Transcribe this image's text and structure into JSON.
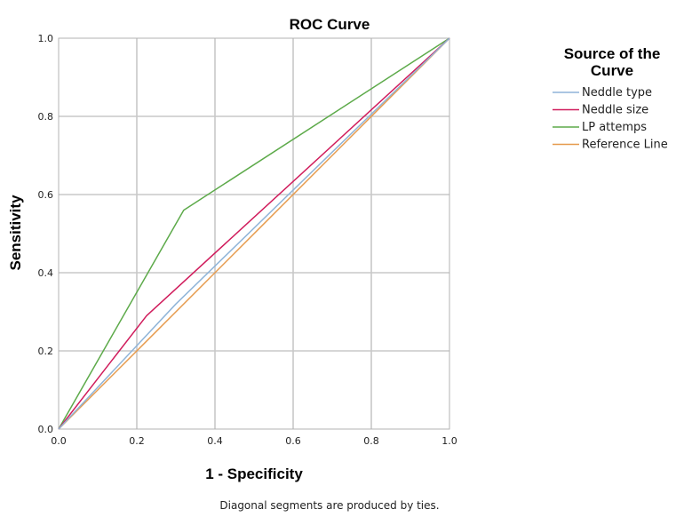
{
  "chart_data": {
    "type": "line",
    "title": "ROC Curve",
    "xlabel": "1 - Specificity",
    "ylabel": "Sensitivity",
    "xlim": [
      0,
      1
    ],
    "ylim": [
      0,
      1
    ],
    "x_ticks": [
      "0.0",
      "0.2",
      "0.4",
      "0.6",
      "0.8",
      "1.0"
    ],
    "y_ticks": [
      "0.0",
      "0.2",
      "0.4",
      "0.6",
      "0.8",
      "1.0"
    ],
    "grid": true,
    "legend": {
      "title_lines": [
        "Source of the",
        "Curve"
      ],
      "placement": "right"
    },
    "series": [
      {
        "name": "Neddle type",
        "color": "#8fb4d8",
        "points": [
          [
            0,
            0
          ],
          [
            0.3,
            0.32
          ],
          [
            1,
            1
          ]
        ]
      },
      {
        "name": "Neddle size",
        "color": "#d01c5c",
        "points": [
          [
            0,
            0
          ],
          [
            0.225,
            0.29
          ],
          [
            1,
            1
          ]
        ]
      },
      {
        "name": "LP attemps",
        "color": "#5daa4a",
        "points": [
          [
            0,
            0
          ],
          [
            0.32,
            0.56
          ],
          [
            1,
            1
          ]
        ]
      },
      {
        "name": "Reference Line",
        "color": "#e69a4c",
        "points": [
          [
            0,
            0
          ],
          [
            1,
            1
          ]
        ]
      }
    ],
    "footnote": "Diagonal segments are produced by ties."
  }
}
